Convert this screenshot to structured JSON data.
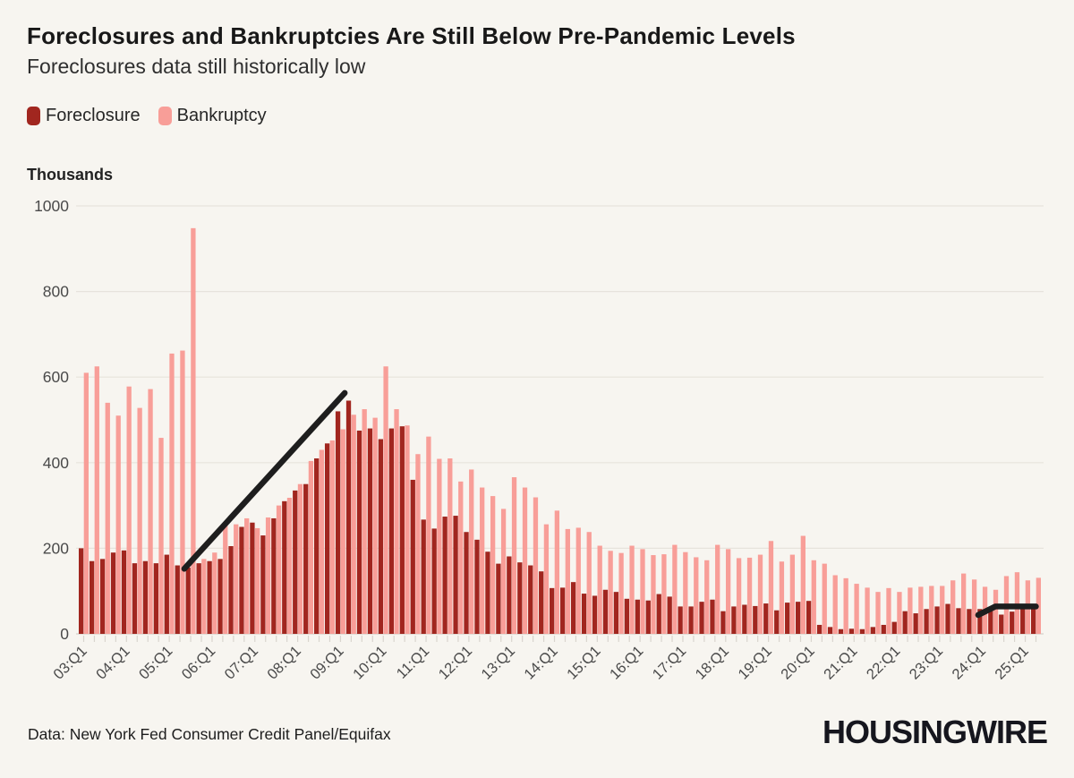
{
  "header": {
    "title": "Foreclosures and Bankruptcies Are Still Below Pre-Pandemic Levels",
    "subtitle": "Foreclosures data still historically low"
  },
  "legend": [
    {
      "label": "Foreclosure",
      "color": "#a1261f"
    },
    {
      "label": "Bankruptcy",
      "color": "#f89e98"
    }
  ],
  "axis_title": "Thousands",
  "footer": {
    "source": "Data: New York Fed Consumer Credit Panel/Equifax",
    "brand": "HOUSINGWIRE"
  },
  "colors": {
    "background": "#f7f5f0",
    "grid": "#e7e3dc",
    "axis_line": "#d5d1ca",
    "tick": "#d9d5ce",
    "axis_text": "#4a4a4a",
    "annotation_line": "#1e1e1e",
    "foreclosure": "#a1261f",
    "bankruptcy": "#f89e98"
  },
  "chart_data": {
    "type": "bar",
    "title": "Foreclosures and Bankruptcies Are Still Below Pre-Pandemic Levels",
    "subtitle": "Foreclosures data still historically low",
    "ylabel": "Thousands",
    "ylim": [
      0,
      1000
    ],
    "yticks": [
      0,
      200,
      400,
      600,
      800,
      1000
    ],
    "grid": true,
    "legend_position": "top-left",
    "xtick_every": 4,
    "categories": [
      "03:Q1",
      "03:Q2",
      "03:Q3",
      "03:Q4",
      "04:Q1",
      "04:Q2",
      "04:Q3",
      "04:Q4",
      "05:Q1",
      "05:Q2",
      "05:Q3",
      "05:Q4",
      "06:Q1",
      "06:Q2",
      "06:Q3",
      "06:Q4",
      "07:Q1",
      "07:Q2",
      "07:Q3",
      "07:Q4",
      "08:Q1",
      "08:Q2",
      "08:Q3",
      "08:Q4",
      "09:Q1",
      "09:Q2",
      "09:Q3",
      "09:Q4",
      "10:Q1",
      "10:Q2",
      "10:Q3",
      "10:Q4",
      "11:Q1",
      "11:Q2",
      "11:Q3",
      "11:Q4",
      "12:Q1",
      "12:Q2",
      "12:Q3",
      "12:Q4",
      "13:Q1",
      "13:Q2",
      "13:Q3",
      "13:Q4",
      "14:Q1",
      "14:Q2",
      "14:Q3",
      "14:Q4",
      "15:Q1",
      "15:Q2",
      "15:Q3",
      "15:Q4",
      "16:Q1",
      "16:Q2",
      "16:Q3",
      "16:Q4",
      "17:Q1",
      "17:Q2",
      "17:Q3",
      "17:Q4",
      "18:Q1",
      "18:Q2",
      "18:Q3",
      "18:Q4",
      "19:Q1",
      "19:Q2",
      "19:Q3",
      "19:Q4",
      "20:Q1",
      "20:Q2",
      "20:Q3",
      "20:Q4",
      "21:Q1",
      "21:Q2",
      "21:Q3",
      "21:Q4",
      "22:Q1",
      "22:Q2",
      "22:Q3",
      "22:Q4",
      "23:Q1",
      "23:Q2",
      "23:Q3",
      "23:Q4",
      "24:Q1",
      "24:Q2",
      "24:Q3",
      "24:Q4",
      "25:Q1",
      "25:Q2"
    ],
    "series": [
      {
        "name": "Foreclosure",
        "color": "#a1261f",
        "values": [
          200,
          170,
          175,
          190,
          195,
          165,
          170,
          165,
          185,
          160,
          155,
          165,
          170,
          175,
          205,
          250,
          260,
          230,
          270,
          310,
          335,
          350,
          410,
          445,
          520,
          545,
          475,
          480,
          455,
          480,
          485,
          360,
          267,
          246,
          274,
          276,
          238,
          220,
          192,
          164,
          181,
          167,
          160,
          146,
          107,
          108,
          121,
          94,
          89,
          103,
          98,
          82,
          80,
          78,
          93,
          87,
          64,
          64,
          75,
          80,
          53,
          64,
          68,
          65,
          71,
          55,
          73,
          75,
          77,
          21,
          16,
          11,
          12,
          11,
          16,
          21,
          28,
          53,
          48,
          58,
          64,
          70,
          60,
          58,
          58,
          57,
          45,
          52,
          58,
          60
        ]
      },
      {
        "name": "Bankruptcy",
        "color": "#f89e98",
        "values": [
          610,
          625,
          540,
          510,
          578,
          528,
          572,
          458,
          655,
          662,
          948,
          175,
          190,
          253,
          256,
          270,
          247,
          272,
          300,
          318,
          350,
          404,
          430,
          452,
          478,
          512,
          525,
          505,
          625,
          525,
          487,
          420,
          461,
          409,
          410,
          356,
          384,
          342,
          322,
          292,
          366,
          342,
          319,
          256,
          288,
          245,
          248,
          238,
          206,
          194,
          189,
          206,
          198,
          184,
          186,
          208,
          191,
          179,
          172,
          208,
          198,
          177,
          178,
          185,
          217,
          169,
          185,
          229,
          172,
          164,
          137,
          130,
          117,
          108,
          98,
          107,
          98,
          108,
          110,
          112,
          112,
          125,
          141,
          127,
          110,
          103,
          135,
          144,
          125,
          131
        ]
      }
    ],
    "annotations": [
      {
        "name": "foreclosure-runup-line",
        "points": [
          [
            9.4,
            152
          ],
          [
            24.4,
            563
          ]
        ]
      },
      {
        "name": "recent-foreclosure-line",
        "points": [
          [
            83.6,
            44
          ],
          [
            85.2,
            64
          ],
          [
            89.0,
            64
          ]
        ]
      }
    ]
  }
}
